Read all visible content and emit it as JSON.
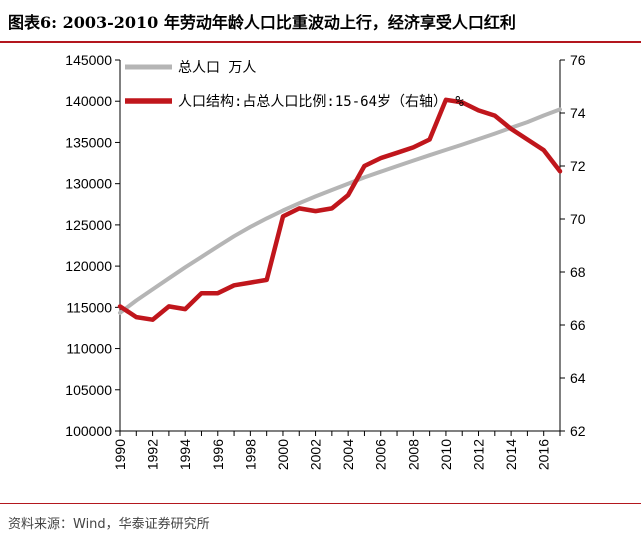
{
  "title": "图表6:   2003-2010 年劳动年龄人口比重波动上行，经济享受人口红利",
  "source": "资料来源：Wind，华泰证券研究所",
  "colors": {
    "accent": "#b3171e",
    "total_line": "#b5b5b5",
    "ratio_line": "#c0161c",
    "axis": "#000000"
  },
  "chart_data": {
    "type": "line",
    "title": "图表6:   2003-2010 年劳动年龄人口比重波动上行，经济享受人口红利",
    "xlabel": "",
    "ylabel_left": "",
    "ylabel_right": "",
    "ylim_left": [
      100000,
      145000
    ],
    "ylim_right": [
      62,
      76
    ],
    "xlim": [
      1990,
      2017
    ],
    "left_ticks": [
      "100000",
      "105000",
      "110000",
      "115000",
      "120000",
      "125000",
      "130000",
      "135000",
      "140000",
      "145000"
    ],
    "right_ticks": [
      "62",
      "64",
      "66",
      "68",
      "70",
      "72",
      "74",
      "76"
    ],
    "x_ticks": [
      "1990",
      "1992",
      "1994",
      "1996",
      "1998",
      "2000",
      "2002",
      "2004",
      "2006",
      "2008",
      "2010",
      "2012",
      "2014",
      "2016"
    ],
    "x": [
      1990,
      1991,
      1992,
      1993,
      1994,
      1995,
      1996,
      1997,
      1998,
      1999,
      2000,
      2001,
      2002,
      2003,
      2004,
      2005,
      2006,
      2007,
      2008,
      2009,
      2010,
      2011,
      2012,
      2013,
      2014,
      2015,
      2016,
      2017
    ],
    "series": [
      {
        "name": "总人口 万人",
        "axis": "left",
        "color": "#b5b5b5",
        "values": [
          114333,
          115823,
          117171,
          118517,
          119850,
          121121,
          122389,
          123626,
          124761,
          125786,
          126743,
          127627,
          128453,
          129227,
          129988,
          130756,
          131448,
          132129,
          132802,
          133450,
          134091,
          134735,
          135404,
          136072,
          136782,
          137462,
          138271,
          139008
        ]
      },
      {
        "name": "人口结构:占总人口比例:15-64岁（右轴） %",
        "axis": "right",
        "color": "#c0161c",
        "values": [
          66.7,
          66.3,
          66.2,
          66.7,
          66.6,
          67.2,
          67.2,
          67.5,
          67.6,
          67.7,
          70.1,
          70.4,
          70.3,
          70.4,
          70.9,
          72.0,
          72.3,
          72.5,
          72.7,
          73.0,
          74.5,
          74.4,
          74.1,
          73.9,
          73.4,
          73.0,
          72.6,
          71.8
        ]
      }
    ],
    "legend": [
      {
        "label": "总人口 万人"
      },
      {
        "label": "人口结构:占总人口比例:15-64岁（右轴） %"
      }
    ]
  }
}
